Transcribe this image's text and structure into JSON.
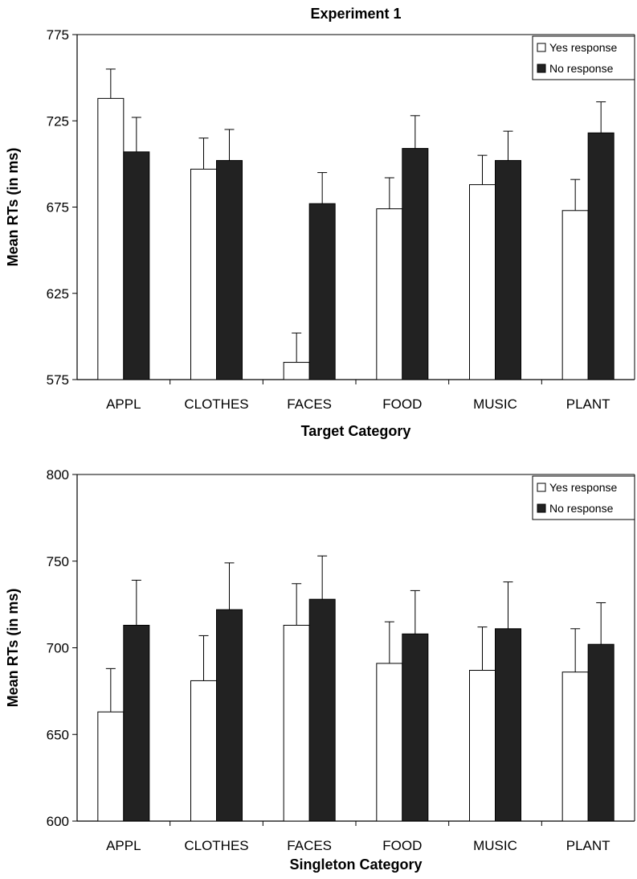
{
  "chart_data": [
    {
      "type": "bar",
      "title": "Experiment 1",
      "xlabel": "Target Category",
      "ylabel": "Mean RTs (in ms)",
      "ylim": [
        575,
        775
      ],
      "yticks": [
        "575",
        "625",
        "675",
        "725",
        "775"
      ],
      "categories": [
        "APPL",
        "CLOTHES",
        "FACES",
        "FOOD",
        "MUSIC",
        "PLANT"
      ],
      "series": [
        {
          "name": "Yes response",
          "fill": "#ffffff",
          "values": [
            738,
            697,
            585,
            674,
            688,
            673
          ],
          "errors": [
            17,
            18,
            17,
            18,
            17,
            18
          ]
        },
        {
          "name": "No response",
          "fill": "#222222",
          "values": [
            707,
            702,
            677,
            709,
            702,
            718
          ],
          "errors": [
            20,
            18,
            18,
            19,
            17,
            18
          ]
        }
      ],
      "legend_position": "top-right",
      "grid": false
    },
    {
      "type": "bar",
      "title": "",
      "xlabel": "Singleton Category",
      "ylabel": "Mean RTs (in ms)",
      "ylim": [
        600,
        800
      ],
      "yticks": [
        "600",
        "650",
        "700",
        "750",
        "800"
      ],
      "categories": [
        "APPL",
        "CLOTHES",
        "FACES",
        "FOOD",
        "MUSIC",
        "PLANT"
      ],
      "series": [
        {
          "name": "Yes response",
          "fill": "#ffffff",
          "values": [
            663,
            681,
            713,
            691,
            687,
            686
          ],
          "errors": [
            25,
            26,
            24,
            24,
            25,
            25
          ]
        },
        {
          "name": "No response",
          "fill": "#222222",
          "values": [
            713,
            722,
            728,
            708,
            711,
            702
          ],
          "errors": [
            26,
            27,
            25,
            25,
            27,
            24
          ]
        }
      ],
      "legend_position": "top-right",
      "grid": false
    }
  ]
}
